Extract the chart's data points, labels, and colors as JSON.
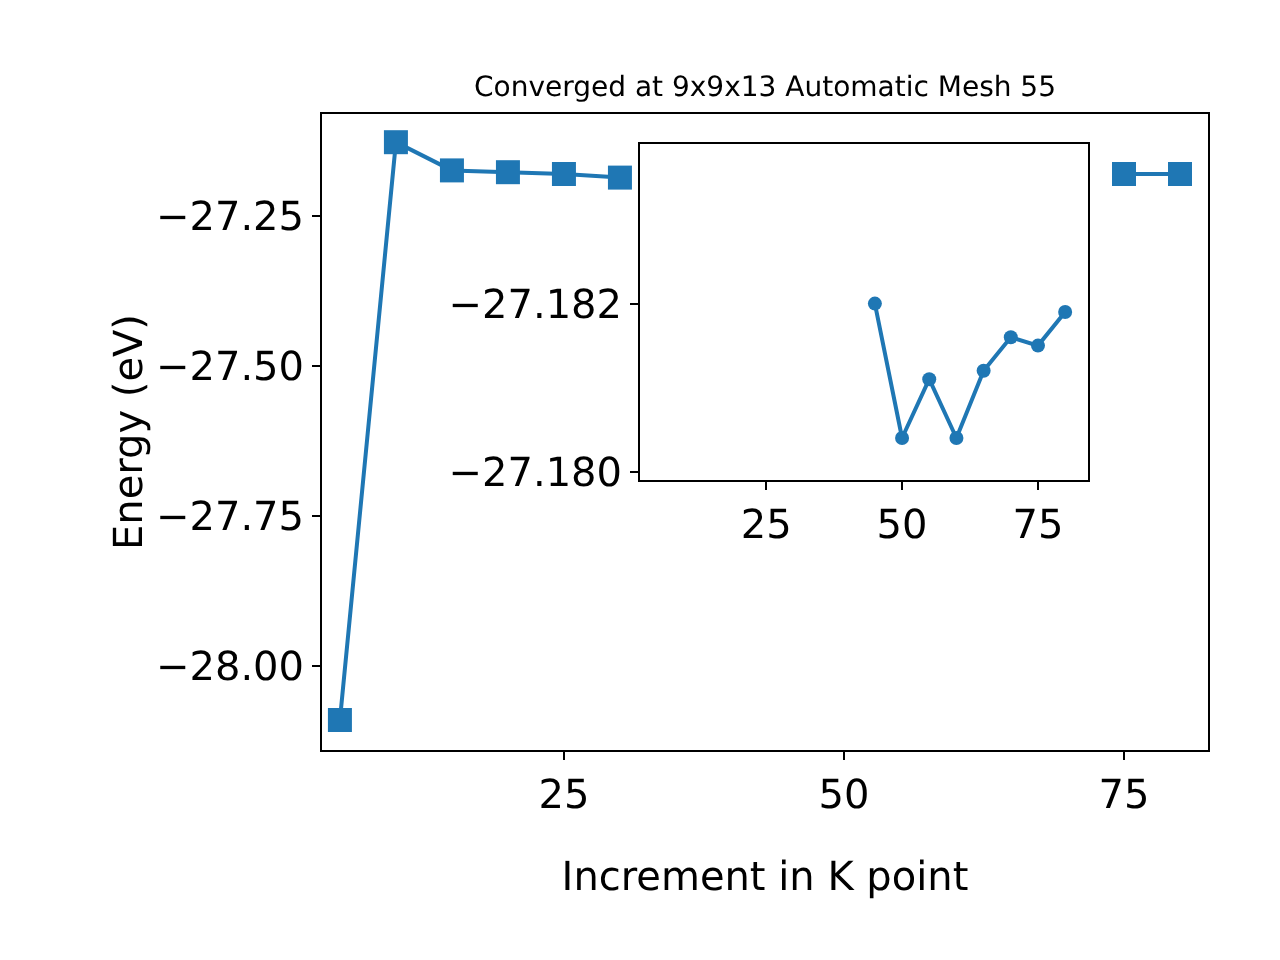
{
  "chart_data": [
    {
      "type": "line",
      "title": "Converged at 9x9x13 Automatic Mesh 55",
      "xlabel": "Increment in K point",
      "ylabel": "Energy (eV)",
      "x": [
        5,
        10,
        15,
        20,
        25,
        30,
        35,
        40,
        45,
        50,
        55,
        60,
        65,
        70,
        75,
        80
      ],
      "series": [
        {
          "color": "#1f77b4",
          "values": [
            -28.09,
            -27.127,
            -27.174,
            -27.177,
            -27.18,
            -27.186,
            null,
            null,
            null,
            null,
            null,
            null,
            null,
            null,
            -27.18,
            -27.18
          ]
        }
      ],
      "marker": "square",
      "line_style": "solid",
      "grid": false,
      "xlim": [
        3.4,
        82.5
      ],
      "xticks": [
        25,
        50,
        75
      ],
      "ylim": [
        -28.14,
        -27.08
      ],
      "yticks": [
        {
          "value": -28.0,
          "label": "−28.00"
        },
        {
          "value": -27.75,
          "label": "−27.75"
        },
        {
          "value": -27.5,
          "label": "−27.50"
        },
        {
          "value": -27.25,
          "label": "−27.25"
        }
      ]
    },
    {
      "type": "line",
      "x": [
        45,
        50,
        55,
        60,
        65,
        70,
        75,
        80
      ],
      "series": [
        {
          "color": "#1f77b4",
          "values": [
            -27.182,
            -27.1804,
            -27.1811,
            -27.1804,
            -27.1812,
            -27.1816,
            -27.1815,
            -27.1819
          ]
        }
      ],
      "marker": "circle",
      "line_style": "solid",
      "grid": false,
      "xlim": [
        1.8,
        84.2
      ],
      "xticks": [
        25,
        50,
        75
      ],
      "ylim": [
        -27.1799,
        -27.1839
      ],
      "yticks": [
        {
          "value": -27.18,
          "label": "−27.180"
        },
        {
          "value": -27.182,
          "label": "−27.182"
        }
      ]
    }
  ]
}
